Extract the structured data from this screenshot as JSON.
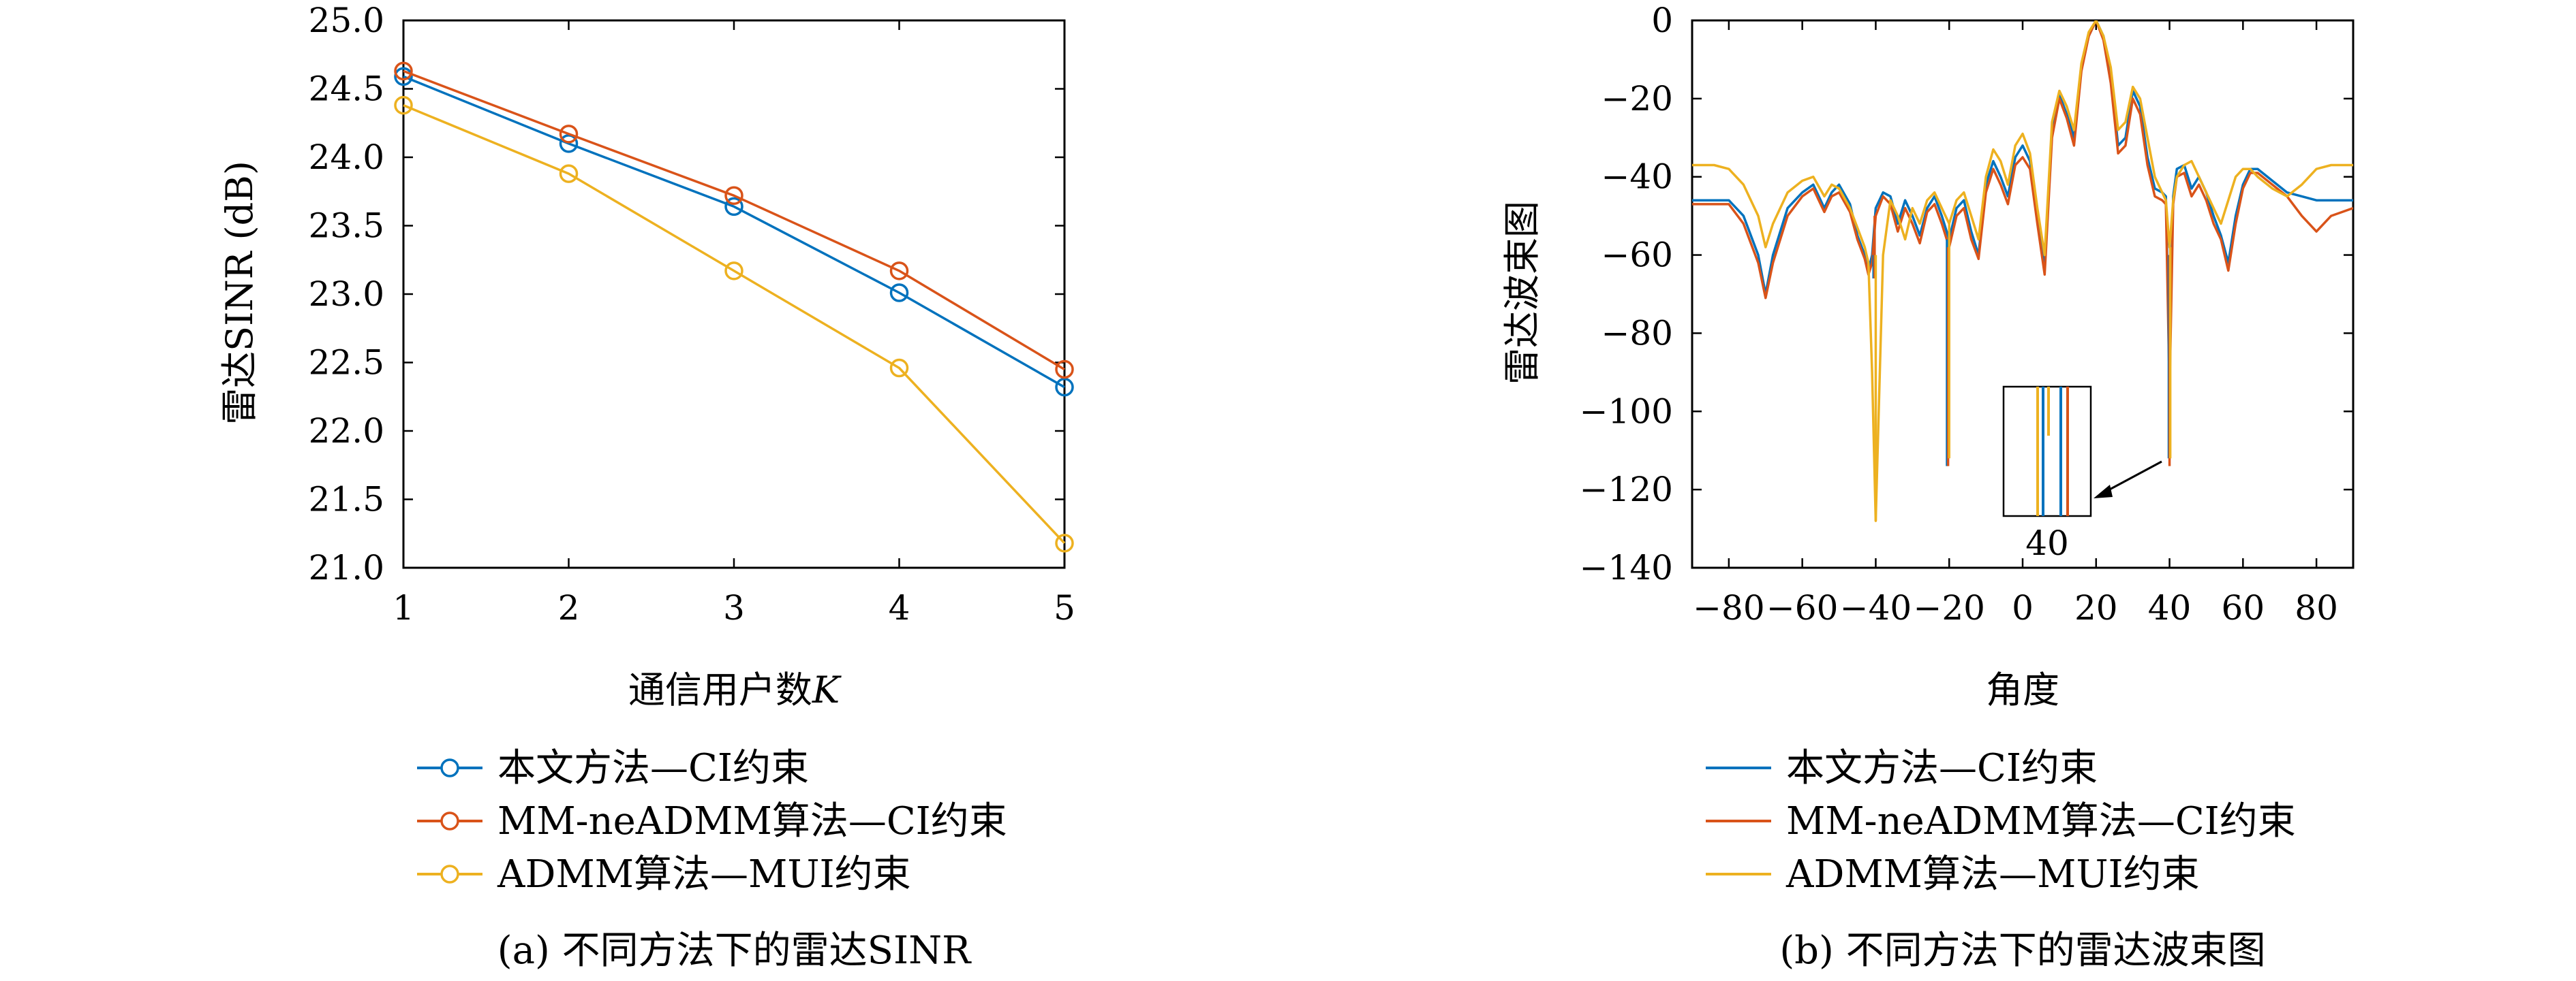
{
  "colors": {
    "s1": "#0072BD",
    "s2": "#D95319",
    "s3": "#EDB120"
  },
  "chart_data": [
    {
      "type": "line",
      "caption": "(a) 不同方法下的雷达SINR",
      "xlabel": "通信用户数",
      "xlabel_var": "K",
      "ylabel": "雷达SINR (dB)",
      "x": [
        1,
        2,
        3,
        4,
        5
      ],
      "xlim": [
        1,
        5
      ],
      "ylim": [
        21.0,
        25.0
      ],
      "xticks": [
        "1",
        "2",
        "3",
        "4",
        "5"
      ],
      "yticks": [
        "21.0",
        "21.5",
        "22.0",
        "22.5",
        "23.0",
        "23.5",
        "24.0",
        "24.5",
        "25.0"
      ],
      "marker": "circle",
      "grid": false,
      "legend_position": "below",
      "series": [
        {
          "name": "本文方法—CI约束",
          "color": "#0072BD",
          "values": [
            24.59,
            24.1,
            23.64,
            23.01,
            22.32
          ]
        },
        {
          "name": "MM-neADMM算法—CI约束",
          "color": "#D95319",
          "values": [
            24.63,
            24.17,
            23.72,
            23.17,
            22.45
          ]
        },
        {
          "name": "ADMM算法—MUI约束",
          "color": "#EDB120",
          "values": [
            24.38,
            23.88,
            23.17,
            22.46,
            21.18
          ]
        }
      ]
    },
    {
      "type": "line",
      "caption": "(b) 不同方法下的雷达波束图",
      "xlabel": "角度",
      "ylabel": "雷达波束图",
      "xlim": [
        -90,
        90
      ],
      "ylim": [
        -140,
        0
      ],
      "xticks": [
        "−80",
        "−60",
        "−40",
        "−20",
        "0",
        "20",
        "40",
        "60",
        "80"
      ],
      "yticks": [
        "−140",
        "−120",
        "−100",
        "−80",
        "−60",
        "−40",
        "−20",
        "0"
      ],
      "inset_label": "40",
      "grid": false,
      "legend_position": "below",
      "series": [
        {
          "name": "本文方法—CI约束",
          "color": "#0072BD",
          "x": [
            -90,
            -80,
            -76,
            -72,
            -70,
            -68,
            -64,
            -60,
            -57,
            -54,
            -52,
            -50,
            -47,
            -45,
            -43,
            -42,
            -41,
            -40,
            -38,
            -36,
            -34,
            -32,
            -30,
            -28,
            -26,
            -24,
            -22,
            -20,
            -18,
            -16,
            -14,
            -12,
            -10,
            -8,
            -6,
            -4,
            -2,
            0,
            2,
            4,
            6,
            8,
            10,
            12,
            14,
            16,
            18,
            20,
            22,
            24,
            26,
            28,
            30,
            32,
            34,
            36,
            38,
            39,
            40,
            41,
            42,
            44,
            46,
            48,
            50,
            52,
            54,
            56,
            58,
            60,
            62,
            64,
            68,
            72,
            76,
            80,
            84,
            90
          ],
          "values": [
            -46,
            -46,
            -50,
            -60,
            -70,
            -60,
            -48,
            -44,
            -42,
            -48,
            -44,
            -42,
            -47,
            -55,
            -60,
            -64,
            -60,
            -48,
            -44,
            -45,
            -52,
            -46,
            -50,
            -55,
            -48,
            -45,
            -50,
            -56,
            -48,
            -46,
            -54,
            -60,
            -42,
            -36,
            -40,
            -45,
            -35,
            -32,
            -36,
            -50,
            -62,
            -28,
            -19,
            -24,
            -30,
            -12,
            -4,
            0,
            -4,
            -14,
            -32,
            -30,
            -18,
            -22,
            -35,
            -43,
            -44,
            -45,
            -88,
            -45,
            -38,
            -37,
            -43,
            -40,
            -44,
            -50,
            -55,
            -62,
            -50,
            -42,
            -38,
            -38,
            -41,
            -44,
            -45,
            -46,
            -46,
            -46
          ]
        },
        {
          "name": "MM-neADMM算法—CI约束",
          "color": "#D95319",
          "x": [
            -90,
            -80,
            -76,
            -72,
            -70,
            -68,
            -64,
            -60,
            -57,
            -54,
            -52,
            -50,
            -47,
            -45,
            -43,
            -42,
            -41,
            -40,
            -38,
            -36,
            -34,
            -32,
            -30,
            -28,
            -26,
            -24,
            -22,
            -20,
            -18,
            -16,
            -14,
            -12,
            -10,
            -8,
            -6,
            -4,
            -2,
            0,
            2,
            4,
            6,
            8,
            10,
            12,
            14,
            16,
            18,
            20,
            22,
            24,
            26,
            28,
            30,
            32,
            34,
            36,
            38,
            39,
            40,
            41,
            42,
            44,
            46,
            48,
            50,
            52,
            54,
            56,
            58,
            60,
            62,
            64,
            68,
            72,
            76,
            80,
            84,
            90
          ],
          "values": [
            -47,
            -47,
            -52,
            -62,
            -71,
            -62,
            -50,
            -45,
            -43,
            -49,
            -45,
            -44,
            -49,
            -56,
            -61,
            -65,
            -62,
            -50,
            -45,
            -47,
            -54,
            -48,
            -52,
            -57,
            -49,
            -47,
            -52,
            -58,
            -50,
            -48,
            -56,
            -61,
            -44,
            -38,
            -42,
            -47,
            -37,
            -35,
            -38,
            -52,
            -65,
            -30,
            -20,
            -25,
            -32,
            -13,
            -4,
            0,
            -5,
            -16,
            -34,
            -32,
            -20,
            -24,
            -37,
            -45,
            -46,
            -47,
            -95,
            -47,
            -40,
            -39,
            -45,
            -42,
            -46,
            -52,
            -56,
            -64,
            -52,
            -43,
            -39,
            -39,
            -42,
            -45,
            -50,
            -54,
            -50,
            -48
          ]
        },
        {
          "name": "ADMM算法—MUI约束",
          "color": "#EDB120",
          "x": [
            -90,
            -84,
            -80,
            -76,
            -72,
            -70,
            -68,
            -64,
            -60,
            -57,
            -54,
            -52,
            -50,
            -47,
            -45,
            -43,
            -42,
            -41,
            -40,
            -38,
            -36,
            -34,
            -32,
            -30,
            -28,
            -26,
            -24,
            -22,
            -20,
            -18,
            -16,
            -14,
            -12,
            -10,
            -8,
            -6,
            -4,
            -2,
            0,
            2,
            4,
            6,
            8,
            10,
            12,
            14,
            16,
            18,
            20,
            22,
            24,
            26,
            28,
            30,
            32,
            34,
            36,
            38,
            39,
            40,
            41,
            42,
            44,
            46,
            48,
            50,
            52,
            54,
            56,
            58,
            60,
            62,
            64,
            68,
            72,
            76,
            80,
            84,
            90
          ],
          "values": [
            -37,
            -37,
            -38,
            -42,
            -50,
            -58,
            -52,
            -44,
            -41,
            -40,
            -45,
            -42,
            -43,
            -48,
            -53,
            -58,
            -62,
            -90,
            -128,
            -60,
            -46,
            -50,
            -56,
            -48,
            -52,
            -46,
            -44,
            -48,
            -52,
            -46,
            -44,
            -50,
            -56,
            -40,
            -33,
            -36,
            -42,
            -32,
            -29,
            -34,
            -48,
            -60,
            -26,
            -18,
            -22,
            -28,
            -11,
            -3,
            0,
            -4,
            -12,
            -28,
            -26,
            -17,
            -20,
            -30,
            -40,
            -44,
            -46,
            -58,
            -46,
            -40,
            -37,
            -36,
            -40,
            -44,
            -48,
            -52,
            -46,
            -40,
            -38,
            -38,
            -40,
            -43,
            -45,
            -42,
            -38,
            -37,
            -37
          ]
        }
      ],
      "spikes": [
        {
          "x": -40.6,
          "series": 0,
          "depth": -66
        },
        {
          "x": -40.3,
          "series": 1,
          "depth": -66
        },
        {
          "x": -40.0,
          "series": 2,
          "depth": -128
        },
        {
          "x": -20.6,
          "series": 0,
          "depth": -114
        },
        {
          "x": -20.3,
          "series": 1,
          "depth": -114
        },
        {
          "x": -20.0,
          "series": 2,
          "depth": -112
        },
        {
          "x": 39.8,
          "series": 0,
          "depth": -112
        },
        {
          "x": 40.0,
          "series": 1,
          "depth": -114
        },
        {
          "x": 40.2,
          "series": 2,
          "depth": -112
        }
      ]
    }
  ]
}
